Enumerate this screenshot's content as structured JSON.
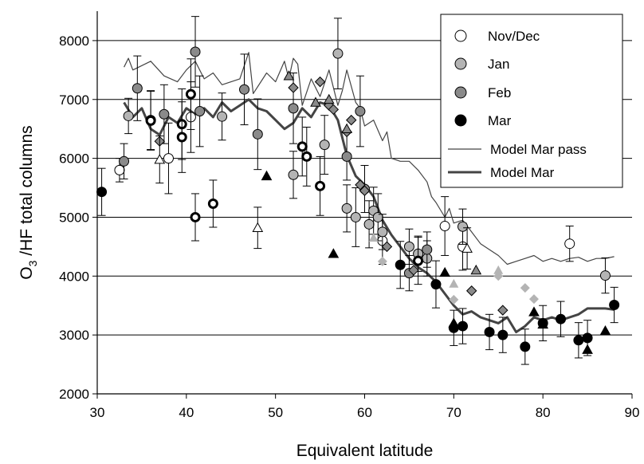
{
  "chart_data": {
    "type": "scatter",
    "xlabel": "Equivalent latitude",
    "ylabel": {
      "main": "O",
      "sub": "3",
      "rest": " /HF total columns"
    },
    "xlim": [
      30,
      90
    ],
    "ylim": [
      2000,
      8500
    ],
    "xticks": [
      30,
      40,
      50,
      60,
      70,
      80,
      90
    ],
    "yticks": [
      2000,
      3000,
      4000,
      5000,
      6000,
      7000,
      8000
    ],
    "grid": "horizontal",
    "legend_position": "top-right",
    "legend": [
      "Nov/Dec",
      "Jan",
      "Feb",
      "Mar",
      "Model Mar pass",
      "Model Mar"
    ],
    "colors": {
      "white": "#ffffff",
      "light_gray": "#b4b4b4",
      "mid_gray": "#8a8a8a",
      "black": "#000000",
      "model_line": "#444444"
    },
    "series": [
      {
        "name": "Nov/Dec",
        "marker": "circle",
        "fill": "#ffffff",
        "points": [
          [
            32.5,
            5800,
            200
          ],
          [
            36,
            6650,
            500
          ],
          [
            38,
            6000,
            600
          ],
          [
            40.5,
            6700,
            600
          ],
          [
            69,
            4850,
            500
          ],
          [
            71,
            4500,
            400
          ],
          [
            83,
            4550,
            300
          ],
          [
            62,
            4600,
            400
          ]
        ]
      },
      {
        "name": "Jan",
        "marker": "circle",
        "fill": "#b4b4b4",
        "points": [
          [
            33.5,
            6720,
            300
          ],
          [
            44,
            6710,
            400
          ],
          [
            52,
            5720,
            400
          ],
          [
            55.5,
            6230,
            500
          ],
          [
            57,
            7780,
            600
          ],
          [
            58,
            5150,
            400
          ],
          [
            59,
            5000,
            500
          ],
          [
            60.5,
            4880,
            400
          ],
          [
            61,
            5110,
            400
          ],
          [
            61.5,
            5000,
            400
          ],
          [
            62,
            4750,
            300
          ],
          [
            65,
            4500,
            300
          ],
          [
            66,
            4380,
            300
          ],
          [
            67,
            4300,
            300
          ],
          [
            71,
            4840,
            300
          ],
          [
            87,
            4010,
            300
          ]
        ]
      },
      {
        "name": "Feb",
        "marker": "circle",
        "fill": "#8a8a8a",
        "points": [
          [
            33,
            5950,
            300
          ],
          [
            34.5,
            7190,
            550
          ],
          [
            37.5,
            6750,
            500
          ],
          [
            41,
            7810,
            600
          ],
          [
            41.5,
            6800,
            600
          ],
          [
            46.5,
            7170,
            600
          ],
          [
            48,
            6410,
            600
          ],
          [
            52,
            6850,
            600
          ],
          [
            58,
            6030,
            400
          ],
          [
            59.5,
            6800,
            600
          ],
          [
            60,
            5480,
            400
          ],
          [
            65,
            4050,
            300
          ],
          [
            67,
            4450,
            300
          ]
        ]
      },
      {
        "name": "Mar",
        "marker": "circle",
        "fill": "#000000",
        "points": [
          [
            30.5,
            5430,
            400
          ],
          [
            64,
            4190,
            400
          ],
          [
            68,
            3860,
            400
          ],
          [
            70,
            3120,
            300
          ],
          [
            71,
            3150,
            300
          ],
          [
            74,
            3050,
            300
          ],
          [
            75.5,
            3000,
            300
          ],
          [
            78,
            2800,
            300
          ],
          [
            80,
            3200,
            300
          ],
          [
            82,
            3270,
            300
          ],
          [
            84,
            2910,
            300
          ],
          [
            85,
            2950,
            300
          ],
          [
            88,
            3510,
            300
          ]
        ]
      },
      {
        "name": "Nov/Dec ring",
        "marker": "ring",
        "fill": "#ffffff",
        "points": [
          [
            36,
            6640,
            500
          ],
          [
            39.5,
            6580,
            600
          ],
          [
            39.5,
            6360,
            600
          ],
          [
            40.5,
            7090,
            600
          ],
          [
            41,
            5000,
            400
          ],
          [
            43,
            5230,
            400
          ],
          [
            53,
            6200,
            500
          ],
          [
            53.5,
            6030,
            500
          ],
          [
            55,
            5530,
            500
          ],
          [
            66,
            4260,
            400
          ]
        ]
      },
      {
        "name": "Feb diamond",
        "marker": "diamond",
        "fill": "#8a8a8a",
        "points": [
          [
            37,
            6290,
            0
          ],
          [
            52,
            7200,
            0
          ],
          [
            55,
            7300,
            0
          ],
          [
            56,
            6900,
            0
          ],
          [
            56.5,
            6830,
            0
          ],
          [
            58,
            6450,
            0
          ],
          [
            58.5,
            6650,
            0
          ],
          [
            59.5,
            5550,
            0
          ],
          [
            60,
            5450,
            0
          ],
          [
            62.5,
            4500,
            0
          ],
          [
            65.5,
            4100,
            0
          ],
          [
            72,
            3750,
            0
          ],
          [
            75.5,
            3420,
            0
          ]
        ]
      },
      {
        "name": "Jan diamond",
        "marker": "diamond",
        "fill": "#b4b4b4",
        "points": [
          [
            62,
            4250,
            0
          ],
          [
            70,
            3600,
            0
          ],
          [
            75,
            4000,
            0
          ],
          [
            78,
            3800,
            0
          ],
          [
            79,
            3610,
            0
          ]
        ]
      },
      {
        "name": "Feb triangle",
        "marker": "triangle",
        "fill": "#8a8a8a",
        "points": [
          [
            51.5,
            7400,
            0
          ],
          [
            54.5,
            6950,
            0
          ],
          [
            56,
            7000,
            0
          ],
          [
            58,
            6500,
            0
          ],
          [
            72.5,
            4100,
            0
          ]
        ]
      },
      {
        "name": "Jan triangle",
        "marker": "triangle",
        "fill": "#b4b4b4",
        "points": [
          [
            61,
            4650,
            0
          ],
          [
            70,
            3870,
            0
          ],
          [
            75,
            4100,
            0
          ]
        ]
      },
      {
        "name": "Nov/Dec triangle",
        "marker": "triangle",
        "fill": "#ffffff",
        "points": [
          [
            37,
            5980,
            400
          ],
          [
            48,
            4820,
            350
          ],
          [
            71.5,
            4470,
            350
          ]
        ]
      },
      {
        "name": "Mar triangle",
        "marker": "triangle",
        "fill": "#000000",
        "points": [
          [
            49,
            5700,
            0
          ],
          [
            56.5,
            4380,
            0
          ],
          [
            69,
            4060,
            0
          ],
          [
            70,
            3200,
            0
          ],
          [
            79,
            3390,
            0
          ],
          [
            80,
            3180,
            0
          ],
          [
            85,
            2750,
            0
          ],
          [
            87,
            3070,
            0
          ]
        ]
      }
    ],
    "lines": [
      {
        "name": "Model Mar pass",
        "color": "#444444",
        "width": 1.2,
        "points": [
          [
            33,
            7550
          ],
          [
            33.5,
            7700
          ],
          [
            34,
            7500
          ],
          [
            36,
            7650
          ],
          [
            37.5,
            7400
          ],
          [
            39,
            7300
          ],
          [
            40,
            7500
          ],
          [
            41,
            7650
          ],
          [
            42,
            7350
          ],
          [
            43,
            7450
          ],
          [
            44,
            7250
          ],
          [
            46,
            7350
          ],
          [
            47,
            7800
          ],
          [
            47.5,
            7100
          ],
          [
            49,
            7450
          ],
          [
            50,
            7300
          ],
          [
            51,
            7650
          ],
          [
            51.5,
            7350
          ],
          [
            52,
            7700
          ],
          [
            52.5,
            7600
          ],
          [
            53,
            6900
          ],
          [
            54,
            7350
          ],
          [
            55,
            7050
          ],
          [
            56,
            7500
          ],
          [
            57,
            6900
          ],
          [
            57.5,
            7150
          ],
          [
            58,
            7500
          ],
          [
            59,
            6950
          ],
          [
            59.5,
            6850
          ],
          [
            60,
            6550
          ],
          [
            61,
            6650
          ],
          [
            62,
            6300
          ],
          [
            62.5,
            6450
          ],
          [
            63,
            6000
          ],
          [
            64,
            5950
          ],
          [
            65,
            5950
          ],
          [
            66,
            5800
          ],
          [
            67,
            5600
          ],
          [
            67.5,
            5350
          ],
          [
            68,
            5250
          ],
          [
            69,
            5000
          ],
          [
            69.5,
            5150
          ],
          [
            70,
            4900
          ],
          [
            71,
            4950
          ],
          [
            72,
            4750
          ],
          [
            73,
            4550
          ],
          [
            74,
            4450
          ],
          [
            75,
            4350
          ],
          [
            76,
            4200
          ],
          [
            77,
            4250
          ],
          [
            78,
            4300
          ],
          [
            79,
            4350
          ],
          [
            80,
            4250
          ],
          [
            81,
            4300
          ],
          [
            82,
            4250
          ],
          [
            83,
            4300
          ],
          [
            84,
            4320
          ],
          [
            85,
            4250
          ],
          [
            86,
            4300
          ],
          [
            87,
            4300
          ],
          [
            88,
            4330
          ]
        ]
      },
      {
        "name": "Model Mar",
        "color": "#444444",
        "width": 3,
        "points": [
          [
            33,
            6950
          ],
          [
            34,
            6700
          ],
          [
            35,
            6850
          ],
          [
            36,
            6500
          ],
          [
            37,
            6400
          ],
          [
            38,
            6700
          ],
          [
            39,
            6600
          ],
          [
            40,
            6850
          ],
          [
            41,
            6750
          ],
          [
            42,
            6850
          ],
          [
            43,
            6700
          ],
          [
            44,
            6950
          ],
          [
            45,
            6800
          ],
          [
            46,
            6900
          ],
          [
            47,
            7000
          ],
          [
            48,
            6850
          ],
          [
            49,
            6800
          ],
          [
            50,
            6650
          ],
          [
            51,
            6500
          ],
          [
            52,
            6600
          ],
          [
            53,
            6850
          ],
          [
            54,
            6700
          ],
          [
            55,
            6950
          ],
          [
            56,
            6900
          ],
          [
            57,
            6650
          ],
          [
            58,
            6050
          ],
          [
            59,
            5700
          ],
          [
            60,
            5550
          ],
          [
            61,
            5350
          ],
          [
            62,
            4950
          ],
          [
            63,
            4700
          ],
          [
            64,
            4500
          ],
          [
            65,
            4300
          ],
          [
            66,
            4150
          ],
          [
            67,
            4050
          ],
          [
            68,
            3900
          ],
          [
            69,
            3700
          ],
          [
            70,
            3500
          ],
          [
            71,
            3350
          ],
          [
            72,
            3400
          ],
          [
            73,
            3300
          ],
          [
            74,
            3250
          ],
          [
            75,
            3200
          ],
          [
            76,
            3300
          ],
          [
            77,
            3050
          ],
          [
            78,
            3150
          ],
          [
            79,
            3300
          ],
          [
            80,
            3250
          ],
          [
            81,
            3300
          ],
          [
            82,
            3250
          ],
          [
            83,
            3300
          ],
          [
            84,
            3350
          ],
          [
            85,
            3450
          ],
          [
            86,
            3450
          ],
          [
            87,
            3450
          ],
          [
            88,
            3430
          ]
        ]
      }
    ]
  }
}
